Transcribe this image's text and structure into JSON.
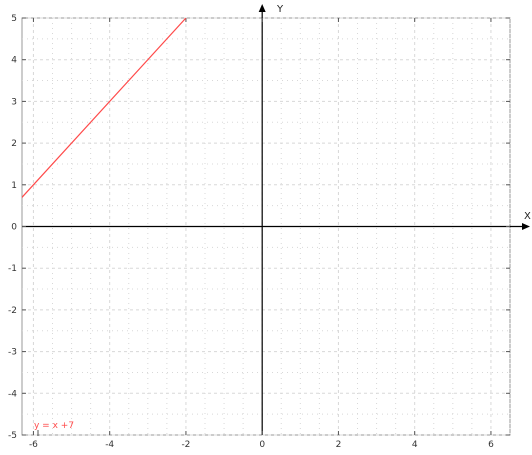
{
  "chart_data": {
    "type": "line",
    "xlabel": "X",
    "ylabel": "Y",
    "xlim": [
      -6.3,
      6.5
    ],
    "ylim": [
      -5,
      5
    ],
    "x_ticks": [
      -6,
      -4,
      -2,
      0,
      2,
      4,
      6
    ],
    "y_ticks": [
      -5,
      -4,
      -3,
      -2,
      -1,
      0,
      1,
      2,
      3,
      4,
      5
    ],
    "grid": true,
    "series": [
      {
        "name": "y = x +7",
        "x": [
          -6.5,
          -2
        ],
        "y": [
          0.5,
          5
        ]
      }
    ],
    "legend": {
      "position": "bottom-left"
    },
    "colors": {
      "series": "#ff4a4a",
      "axis": "#000000",
      "grid": "#d8d8d8",
      "frame": "#999999"
    }
  }
}
